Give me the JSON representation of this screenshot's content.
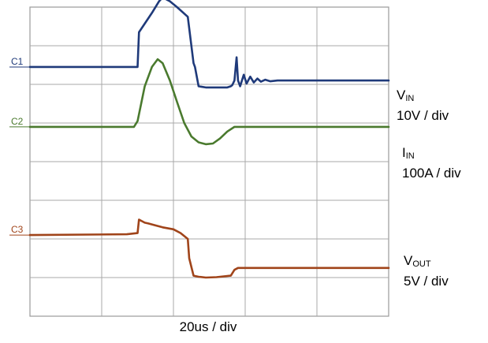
{
  "chart_data": {
    "type": "line",
    "time_label": "20us / div",
    "x_divisions": 5,
    "y_divisions": 8,
    "grid": true,
    "series": [
      {
        "name": "C1",
        "color": "#1f3a7a",
        "label": "V",
        "label_sub": "IN",
        "scale": "10V / div",
        "points": [
          [
            0,
            6.45
          ],
          [
            1.5,
            6.45
          ],
          [
            1.52,
            7.35
          ],
          [
            1.7,
            7.85
          ],
          [
            1.8,
            8.15
          ],
          [
            1.85,
            8.25
          ],
          [
            1.95,
            8.15
          ],
          [
            2.05,
            8.0
          ],
          [
            2.2,
            7.75
          ],
          [
            2.28,
            6.55
          ],
          [
            2.3,
            6.45
          ],
          [
            2.35,
            5.95
          ],
          [
            2.45,
            5.92
          ],
          [
            2.75,
            5.92
          ],
          [
            2.8,
            5.95
          ],
          [
            2.82,
            5.98
          ],
          [
            2.85,
            6.1
          ],
          [
            2.88,
            6.7
          ],
          [
            2.9,
            6.1
          ],
          [
            2.93,
            5.95
          ],
          [
            2.98,
            6.25
          ],
          [
            3.02,
            6.02
          ],
          [
            3.07,
            6.2
          ],
          [
            3.12,
            6.05
          ],
          [
            3.17,
            6.15
          ],
          [
            3.22,
            6.07
          ],
          [
            3.28,
            6.12
          ],
          [
            3.35,
            6.08
          ],
          [
            3.45,
            6.1
          ],
          [
            5,
            6.1
          ]
        ]
      },
      {
        "name": "C2",
        "color": "#4a7a2e",
        "label": "I",
        "label_sub": "IN",
        "scale": "100A / div",
        "points": [
          [
            0,
            4.9
          ],
          [
            1.45,
            4.9
          ],
          [
            1.5,
            5.05
          ],
          [
            1.6,
            5.95
          ],
          [
            1.7,
            6.45
          ],
          [
            1.78,
            6.65
          ],
          [
            1.85,
            6.55
          ],
          [
            1.95,
            6.1
          ],
          [
            2.05,
            5.55
          ],
          [
            2.15,
            5.0
          ],
          [
            2.25,
            4.65
          ],
          [
            2.35,
            4.5
          ],
          [
            2.45,
            4.45
          ],
          [
            2.55,
            4.47
          ],
          [
            2.65,
            4.6
          ],
          [
            2.75,
            4.78
          ],
          [
            2.85,
            4.9
          ],
          [
            5,
            4.9
          ]
        ]
      },
      {
        "name": "C3",
        "color": "#a0441a",
        "label": "V",
        "label_sub": "OUT",
        "scale": "5V / div",
        "points": [
          [
            0,
            2.1
          ],
          [
            1.35,
            2.12
          ],
          [
            1.5,
            2.15
          ],
          [
            1.52,
            2.5
          ],
          [
            1.6,
            2.42
          ],
          [
            1.65,
            2.4
          ],
          [
            1.75,
            2.35
          ],
          [
            1.85,
            2.3
          ],
          [
            2.0,
            2.25
          ],
          [
            2.1,
            2.15
          ],
          [
            2.2,
            2.0
          ],
          [
            2.22,
            1.5
          ],
          [
            2.28,
            1.05
          ],
          [
            2.35,
            1.02
          ],
          [
            2.45,
            1.0
          ],
          [
            2.6,
            1.01
          ],
          [
            2.8,
            1.05
          ],
          [
            2.85,
            1.2
          ],
          [
            2.9,
            1.25
          ],
          [
            3.5,
            1.25
          ],
          [
            5,
            1.25
          ]
        ]
      }
    ]
  }
}
